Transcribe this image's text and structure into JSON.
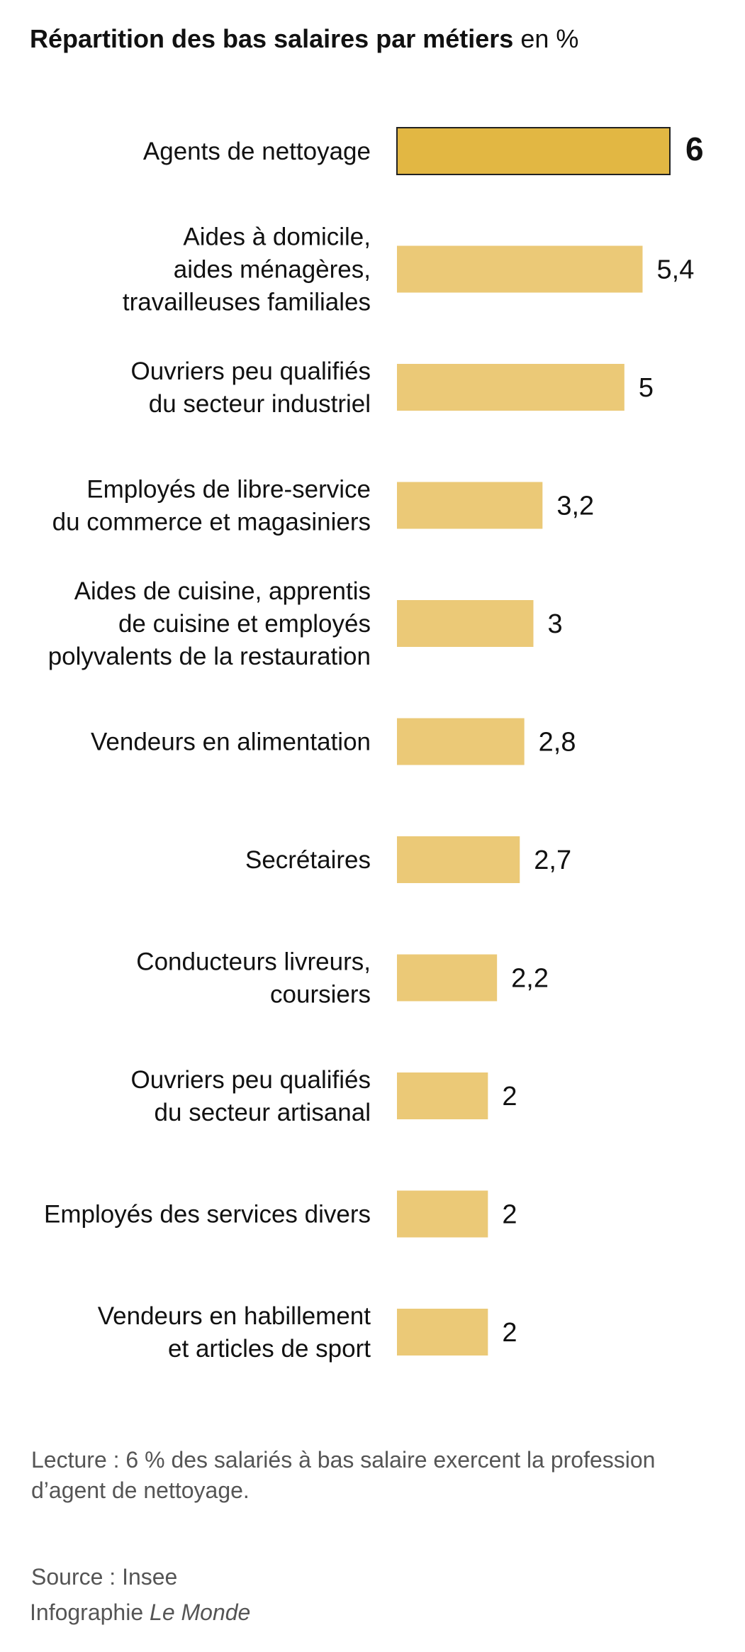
{
  "title": {
    "main": "Répartition des bas salaires par métiers",
    "unit": "en %"
  },
  "chart_data": {
    "type": "bar",
    "orientation": "horizontal",
    "title": "Répartition des bas salaires par métiers",
    "unit": "en %",
    "categories": [
      [
        "Agents de nettoyage"
      ],
      [
        "Aides à domicile,",
        "aides ménagères,",
        "travailleuses familiales"
      ],
      [
        "Ouvriers peu qualifiés",
        "du secteur industriel"
      ],
      [
        "Employés de libre-service",
        "du commerce et magasiniers"
      ],
      [
        "Aides de cuisine, apprentis",
        "de cuisine et employés",
        "polyvalents de la restauration"
      ],
      [
        "Vendeurs en alimentation"
      ],
      [
        "Secrétaires"
      ],
      [
        "Conducteurs livreurs,",
        "coursiers"
      ],
      [
        "Ouvriers peu qualifiés",
        "du secteur artisanal"
      ],
      [
        "Employés des services divers"
      ],
      [
        "Vendeurs en habillement",
        "et articles de sport"
      ]
    ],
    "values": [
      6,
      5.4,
      5,
      3.2,
      3,
      2.8,
      2.7,
      2.2,
      2,
      2,
      2
    ],
    "value_labels": [
      "6",
      "5,4",
      "5",
      "3,2",
      "3",
      "2,8",
      "2,7",
      "2,2",
      "2",
      "2",
      "2"
    ],
    "highlight_index": 0,
    "colors": {
      "bar": "#ebc977",
      "highlight": "#e2b743",
      "highlight_border": "#222222",
      "text": "#111111"
    },
    "xlim": [
      0,
      6
    ],
    "grid": false,
    "legend": "none"
  },
  "note": "Lecture : 6 % des salariés à bas salaire exercent la profession d’agent de nettoyage.",
  "source": "Source : Insee",
  "credit": {
    "prefix": "Infographie",
    "brand": "Le Monde"
  }
}
